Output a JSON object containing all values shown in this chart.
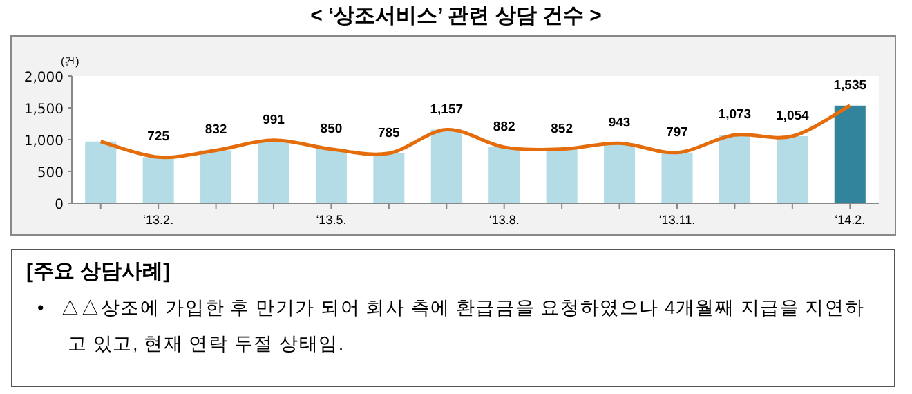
{
  "chart_data": {
    "type": "bar",
    "title": "< ‘상조서비스’ 관련 상담 건수 >",
    "ylabel": "(건)",
    "categories": [
      null,
      "‘13.2.",
      null,
      null,
      "‘13.5.",
      null,
      null,
      "‘13.8.",
      null,
      null,
      "‘13.11.",
      null,
      null,
      "‘14.2."
    ],
    "ylim": [
      0,
      2000
    ],
    "yticks": [
      0,
      {
        "value": 500,
        "label": "500"
      },
      {
        "value": 1000,
        "label": "1,000"
      },
      {
        "value": 1500,
        "label": "1,500"
      },
      {
        "value": 2000,
        "label": "2,000"
      }
    ],
    "grid": false,
    "series": [
      {
        "colors": [
          "#b4dce6",
          "#b4dce6",
          "#b4dce6",
          "#b4dce6",
          "#b4dce6",
          "#b4dce6",
          "#b4dce6",
          "#b4dce6",
          "#b4dce6",
          "#b4dce6",
          "#b4dce6",
          "#b4dce6",
          "#b4dce6",
          "#31849b"
        ],
        "values": [
          970,
          725,
          832,
          991,
          850,
          785,
          1157,
          882,
          852,
          943,
          797,
          1073,
          1054,
          1535
        ],
        "value_labels": [
          null,
          "725",
          "832",
          "991",
          "850",
          "785",
          "1,157",
          "882",
          "852",
          "943",
          "797",
          "1,073",
          "1,054",
          "1,535"
        ]
      },
      {
        "type": "line",
        "color": "#e46c0a",
        "values": [
          970,
          725,
          832,
          991,
          850,
          785,
          1157,
          882,
          852,
          943,
          797,
          1073,
          1054,
          1535
        ]
      }
    ],
    "annotations": [
      "[주요 상담사례]",
      "•   △△상조에 가입한 후 만기가 되어 회사 측에 환급금을 요청하였으나 4개월째 지급을 지연하고 있고, 현재 연락 두절 상태임."
    ]
  }
}
